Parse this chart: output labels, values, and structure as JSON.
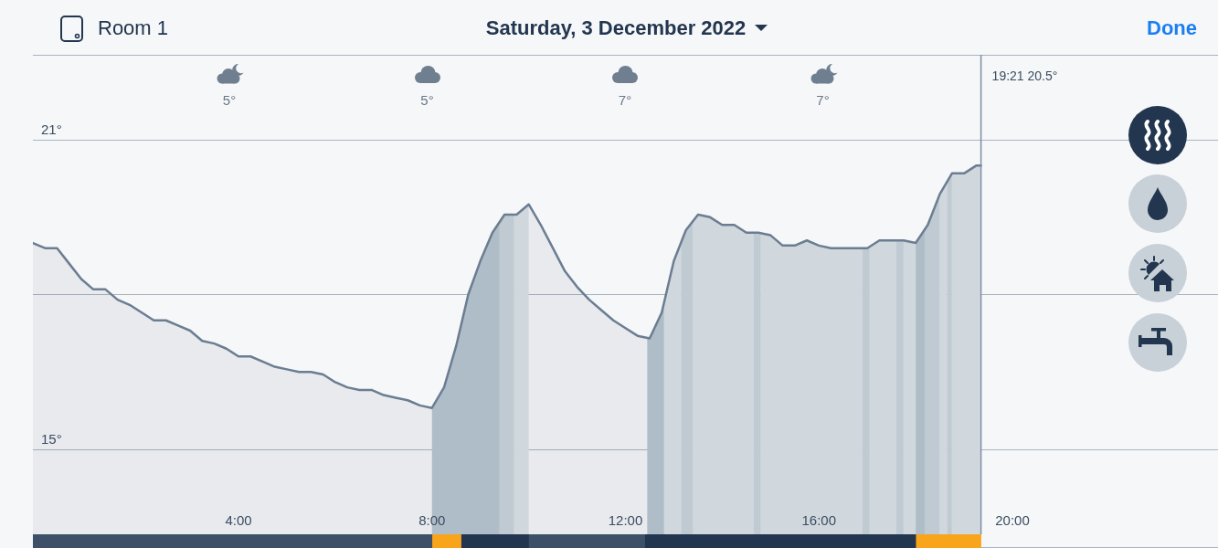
{
  "chart_data": [
    {
      "type": "area",
      "title": "Saturday, 3 December 2022",
      "subtitle": "Room 1",
      "annotations": [
        "Done",
        "5°",
        "5°",
        "7°",
        "7°"
      ],
      "x": [
        -0.25,
        0,
        0.25,
        0.5,
        0.75,
        1,
        1.25,
        1.5,
        1.75,
        2,
        2.25,
        2.5,
        2.75,
        3,
        3.25,
        3.5,
        3.75,
        4,
        4.25,
        4.5,
        4.75,
        5,
        5.25,
        5.5,
        5.75,
        6,
        6.25,
        6.5,
        6.75,
        7,
        7.25,
        7.5,
        7.75,
        8,
        8.25,
        8.5,
        8.75,
        9,
        9.25,
        9.5,
        9.75,
        10,
        10.25,
        10.5,
        10.75,
        11,
        11.25,
        11.5,
        11.75,
        12,
        12.25,
        12.5,
        12.75,
        13,
        13.25,
        13.5,
        13.75,
        14,
        14.25,
        14.5,
        14.75,
        15,
        15.25,
        15.5,
        15.75,
        16,
        16.25,
        16.5,
        16.75,
        17,
        17.25,
        17.5,
        17.75,
        18,
        18.25,
        18.5,
        18.75,
        19,
        19.25,
        19.35
      ],
      "series": [
        {
          "color": "#6b7d91",
          "values": [
            19.0,
            18.9,
            18.9,
            18.6,
            18.3,
            18.1,
            18.1,
            17.9,
            17.8,
            17.65,
            17.5,
            17.5,
            17.4,
            17.3,
            17.1,
            17.05,
            16.95,
            16.8,
            16.8,
            16.7,
            16.6,
            16.55,
            16.5,
            16.5,
            16.45,
            16.3,
            16.2,
            16.15,
            16.15,
            16.05,
            16.0,
            15.95,
            15.85,
            15.8,
            16.2,
            17.0,
            18.0,
            18.65,
            19.2,
            19.55,
            19.55,
            19.75,
            19.35,
            18.9,
            18.45,
            18.15,
            17.9,
            17.7,
            17.5,
            17.35,
            17.2,
            17.15,
            17.65,
            18.65,
            19.25,
            19.55,
            19.5,
            19.35,
            19.35,
            19.2,
            19.2,
            19.15,
            18.95,
            18.95,
            19.05,
            18.95,
            18.9,
            18.9,
            18.9,
            18.9,
            19.05,
            19.05,
            19.05,
            19.0,
            19.35,
            19.95,
            20.35,
            20.35,
            20.5,
            20.5
          ]
        }
      ],
      "xlim": [
        -0.25,
        24.25
      ],
      "ylim": [
        13.35,
        22.65
      ],
      "yticks": [
        {
          "value": 21,
          "label": "21°"
        },
        {
          "value": 18,
          "label": null
        },
        {
          "value": 15,
          "label": "15°"
        }
      ],
      "grid": "y",
      "marker": "none",
      "line_style": "solid",
      "tick_labels": "y",
      "ref_lines": [
        {
          "axis": "x",
          "value": 19.35,
          "label": "19:21 20.5°",
          "color": "#7f8fa2"
        }
      ],
      "bands": [
        {
          "axis": "x",
          "from": 8.0,
          "to": 9.4,
          "color": "#b7c5ce"
        },
        {
          "axis": "x",
          "from": 9.4,
          "to": 9.7,
          "color": "#cad3da"
        },
        {
          "axis": "x",
          "from": 9.7,
          "to": 10.0,
          "color": "#dce2e7"
        },
        {
          "axis": "x",
          "from": 12.45,
          "to": 12.8,
          "color": "#b7c5ce"
        },
        {
          "axis": "x",
          "from": 12.8,
          "to": 13.15,
          "color": "#dce2e7"
        },
        {
          "axis": "x",
          "from": 13.15,
          "to": 13.4,
          "color": "#cad3da"
        },
        {
          "axis": "x",
          "from": 13.4,
          "to": 14.65,
          "color": "#dce2e7"
        },
        {
          "axis": "x",
          "from": 14.65,
          "to": 14.8,
          "color": "#cad3da"
        },
        {
          "axis": "x",
          "from": 14.8,
          "to": 16.9,
          "color": "#dce2e7"
        },
        {
          "axis": "x",
          "from": 16.9,
          "to": 17.05,
          "color": "#cad3da"
        },
        {
          "axis": "x",
          "from": 17.05,
          "to": 17.6,
          "color": "#dce2e7"
        },
        {
          "axis": "x",
          "from": 17.6,
          "to": 17.75,
          "color": "#cad3da"
        },
        {
          "axis": "x",
          "from": 17.75,
          "to": 18.0,
          "color": "#dce2e7"
        },
        {
          "axis": "x",
          "from": 18.0,
          "to": 18.2,
          "color": "#b7c5ce"
        },
        {
          "axis": "x",
          "from": 18.2,
          "to": 18.5,
          "color": "#cad3da"
        },
        {
          "axis": "x",
          "from": 18.5,
          "to": 18.65,
          "color": "#dce2e7"
        },
        {
          "axis": "x",
          "from": 18.65,
          "to": 18.75,
          "color": "#cad3da"
        },
        {
          "axis": "x",
          "from": 18.75,
          "to": 19.35,
          "color": "#dce2e7"
        }
      ]
    },
    {
      "type": "bar",
      "orientation": "horizontal",
      "stacked": true,
      "categories": [
        null
      ],
      "series": [
        {
          "color": "#3d5068",
          "values": [
            -0.25
          ]
        },
        {
          "color": "#3d5068",
          "values": [
            8.0
          ]
        },
        {
          "color": "#f9a51b",
          "values": [
            0.6
          ]
        },
        {
          "color": "#22364f",
          "values": [
            1.4
          ]
        },
        {
          "color": "#3d5068",
          "values": [
            2.4
          ]
        },
        {
          "color": "#22364f",
          "values": [
            5.6
          ]
        },
        {
          "color": "#f9a51b",
          "values": [
            1.35
          ]
        }
      ],
      "xlim": [
        -0.25,
        24.25
      ],
      "xticks": [
        {
          "value": 4,
          "label": "4:00"
        },
        {
          "value": 8,
          "label": "8:00"
        },
        {
          "value": 12,
          "label": "12:00"
        },
        {
          "value": 16,
          "label": "16:00"
        },
        {
          "value": 20,
          "label": "20:00"
        }
      ],
      "tick_labels": "x"
    }
  ]
}
